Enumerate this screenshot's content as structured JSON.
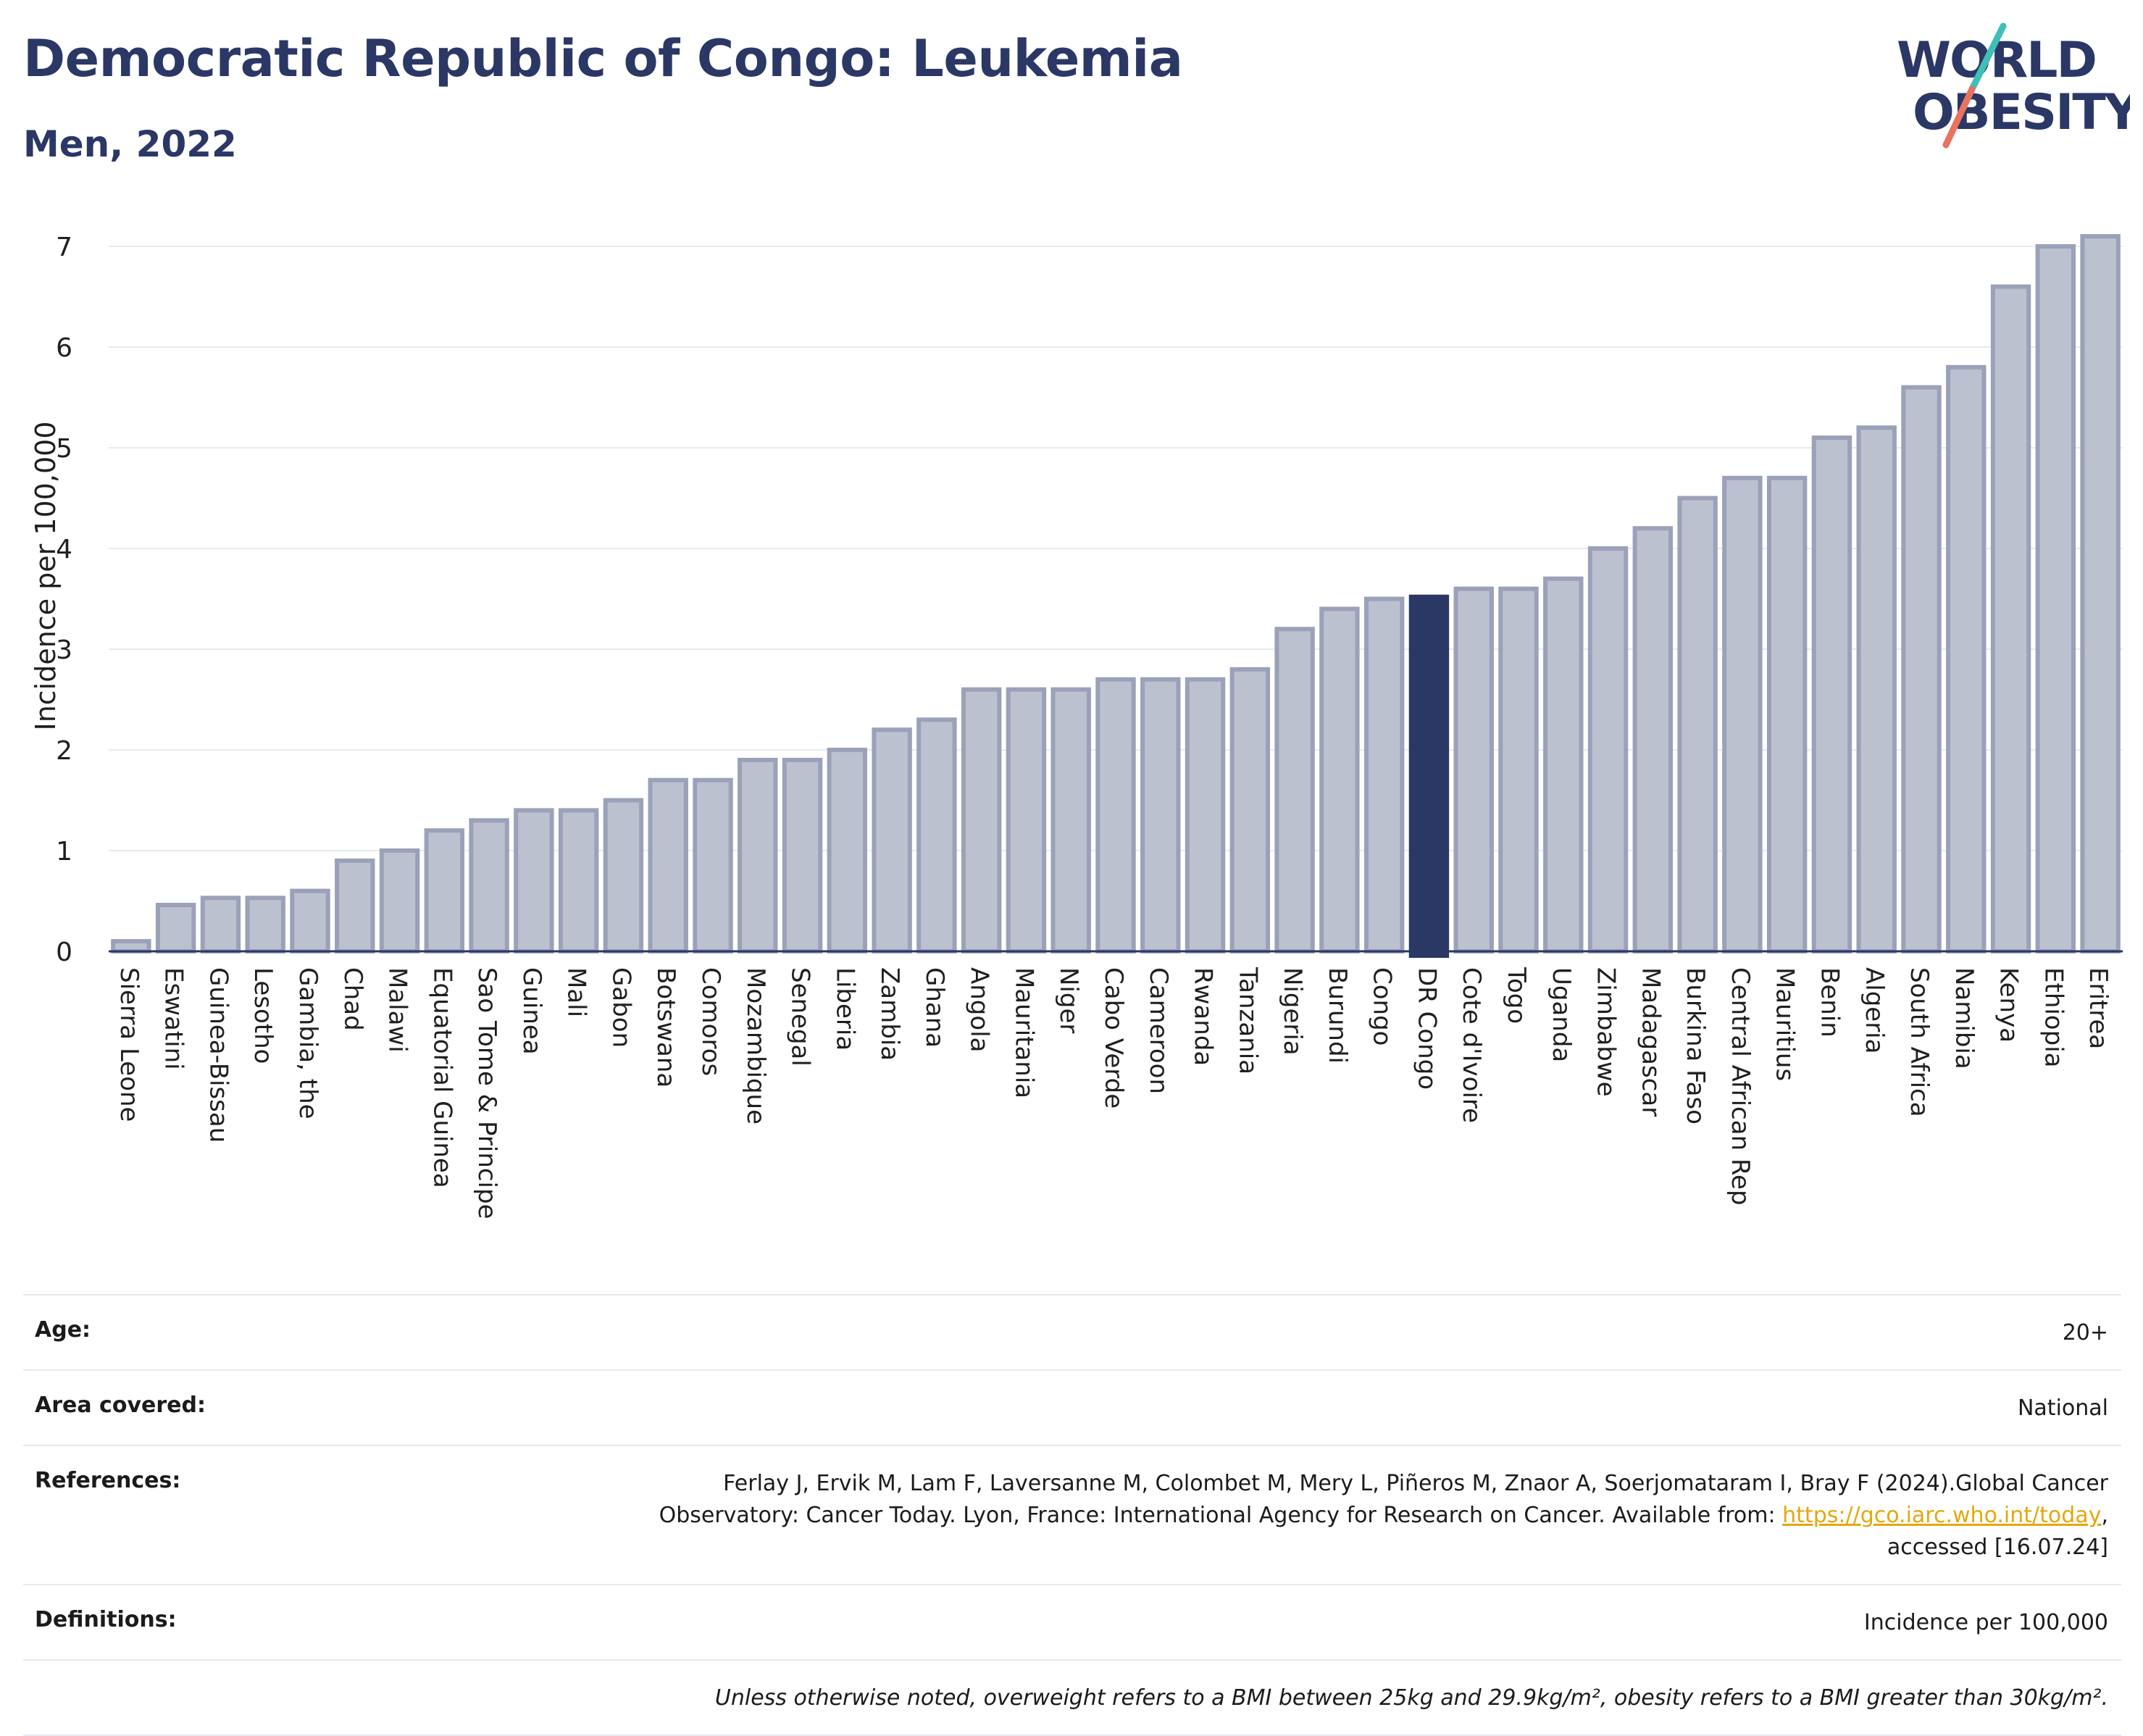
{
  "header": {
    "title": "Democratic Republic of Congo: Leukemia",
    "subtitle": "Men, 2022"
  },
  "logo": {
    "line1": "WORLD",
    "line2": "OBESITY",
    "colors": {
      "text": "#2b3765",
      "slash_teal": "#3fbfb5",
      "slash_coral": "#e8735e"
    }
  },
  "chart_data": {
    "type": "bar",
    "ylabel": "Incidence per 100,000",
    "xlabel": "",
    "ylim": [
      0,
      7.2
    ],
    "yticks": [
      0,
      1,
      2,
      3,
      4,
      5,
      6,
      7
    ],
    "grid": true,
    "highlight": "DR Congo",
    "colors": {
      "bar": "#bcc1d0",
      "bar_border": "#9aa1b8",
      "highlight": "#2b3765",
      "grid": "#e8eaef",
      "axis": "#2b3765"
    },
    "categories": [
      "Sierra Leone",
      "Eswatini",
      "Guinea-Bissau",
      "Lesotho",
      "Gambia, the",
      "Chad",
      "Malawi",
      "Equatorial Guinea",
      "Sao Tome & Principe",
      "Guinea",
      "Mali",
      "Gabon",
      "Botswana",
      "Comoros",
      "Mozambique",
      "Senegal",
      "Liberia",
      "Zambia",
      "Ghana",
      "Angola",
      "Mauritania",
      "Niger",
      "Cabo Verde",
      "Cameroon",
      "Rwanda",
      "Tanzania",
      "Nigeria",
      "Burundi",
      "Congo",
      "DR Congo",
      "Cote d'Ivoire",
      "Togo",
      "Uganda",
      "Zimbabwe",
      "Madagascar",
      "Burkina Faso",
      "Central African Rep",
      "Mauritius",
      "Benin",
      "Algeria",
      "South Africa",
      "Namibia",
      "Kenya",
      "Ethiopia",
      "Eritrea"
    ],
    "values": [
      0.1,
      0.46,
      0.53,
      0.53,
      0.6,
      0.9,
      1.0,
      1.2,
      1.3,
      1.4,
      1.4,
      1.5,
      1.7,
      1.7,
      1.9,
      1.9,
      2.0,
      2.2,
      2.3,
      2.6,
      2.6,
      2.6,
      2.7,
      2.7,
      2.7,
      2.8,
      3.2,
      3.4,
      3.5,
      3.52,
      3.6,
      3.6,
      3.7,
      4.0,
      4.2,
      4.5,
      4.7,
      4.7,
      5.1,
      5.2,
      5.6,
      5.8,
      6.6,
      7.0,
      7.1
    ]
  },
  "info": {
    "age_label": "Age:",
    "age_value": "20+",
    "area_label": "Area covered:",
    "area_value": "National",
    "references_label": "References:",
    "references_line1": "Ferlay J, Ervik M, Lam F, Laversanne M, Colombet M, Mery L, Piñeros M, Znaor A, Soerjomataram I, Bray F (2024).Global Cancer",
    "references_line2": "Observatory: Cancer Today. Lyon, France: International Agency for Research on Cancer. Available from:",
    "references_link": "https://gco.iarc.who.int/today",
    "references_line3": "accessed [16.07.24]",
    "definitions_label": "Definitions:",
    "definitions_value": "Incidence per 100,000",
    "note": "Unless otherwise noted, overweight refers to a BMI between 25kg and 29.9kg/m², obesity refers to a BMI greater than 30kg/m²."
  }
}
